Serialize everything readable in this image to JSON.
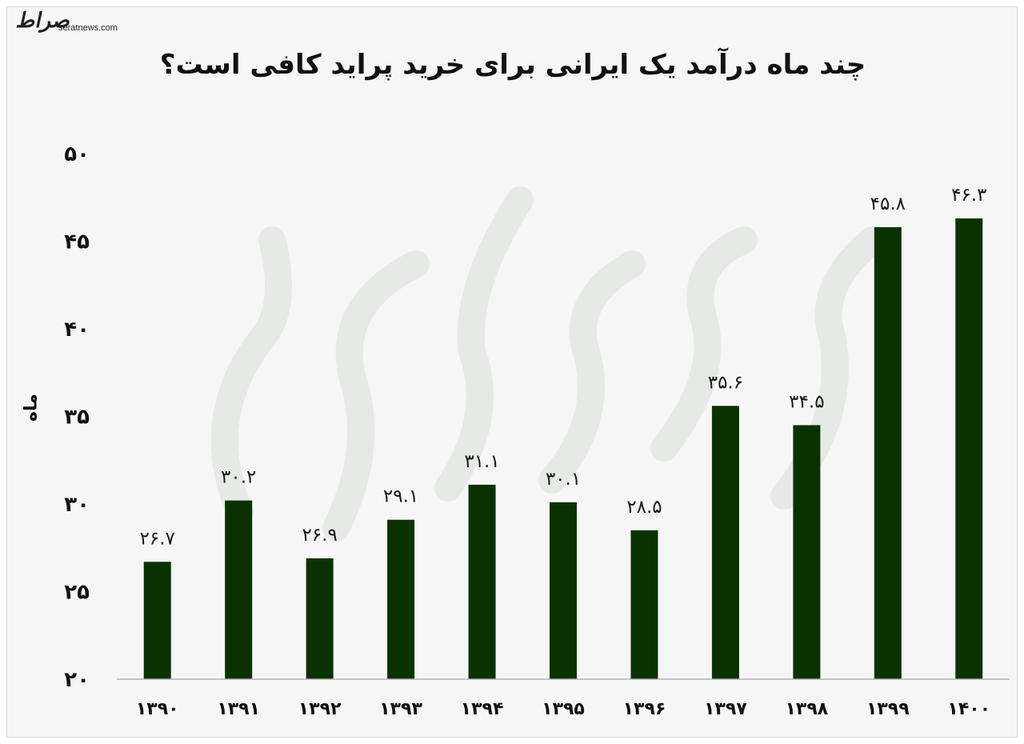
{
  "logo": {
    "mark": "صراط",
    "site": "seratnews.com"
  },
  "colors": {
    "bar": "#0a3200",
    "background": "#f6f6f6",
    "axis": "#b3b3b3",
    "watermark": "#e6e9e6"
  },
  "chart_data": {
    "type": "bar",
    "title": "چند ماه درآمد یک ایرانی برای خرید پراید کافی است؟",
    "ylabel": "ماه",
    "xlabel": "",
    "ylim": [
      20,
      50
    ],
    "yticks": [
      20,
      25,
      30,
      35,
      40,
      45,
      50
    ],
    "ytick_labels": [
      "۲۰",
      "۲۵",
      "۳۰",
      "۳۵",
      "۴۰",
      "۴۵",
      "۵۰"
    ],
    "categories": [
      "۱۳۹۰",
      "۱۳۹۱",
      "۱۳۹۲",
      "۱۳۹۳",
      "۱۳۹۴",
      "۱۳۹۵",
      "۱۳۹۶",
      "۱۳۹۷",
      "۱۳۹۸",
      "۱۳۹۹",
      "۱۴۰۰"
    ],
    "values": [
      26.7,
      30.2,
      26.9,
      29.1,
      31.1,
      30.1,
      28.5,
      35.6,
      34.5,
      45.8,
      46.3
    ],
    "value_labels": [
      "۲۶.۷",
      "۳۰.۲",
      "۲۶.۹",
      "۲۹.۱",
      "۳۱.۱",
      "۳۰.۱",
      "۲۸.۵",
      "۳۵.۶",
      "۳۴.۵",
      "۴۵.۸",
      "۴۶.۳"
    ],
    "grid": false,
    "legend": "none"
  }
}
